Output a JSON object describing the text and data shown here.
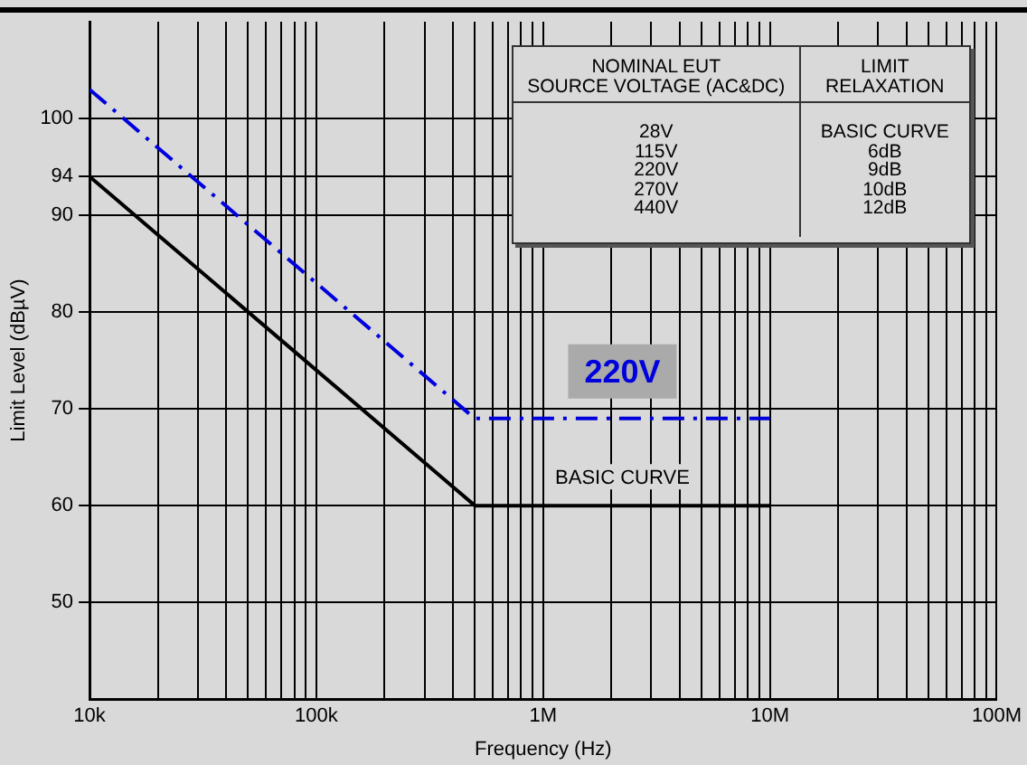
{
  "chart_data": {
    "type": "line",
    "xlabel": "Frequency (Hz)",
    "ylabel": "Limit Level (dBµV)",
    "log": "x",
    "grid": true,
    "legend": false,
    "marker": "none",
    "xlim": [
      10000,
      100000000
    ],
    "xticks": [
      {
        "value": 10000,
        "label": "10k"
      },
      {
        "value": 20000,
        "label": null
      },
      {
        "value": 30000,
        "label": null
      },
      {
        "value": 40000,
        "label": null
      },
      {
        "value": 50000,
        "label": null
      },
      {
        "value": 60000,
        "label": null
      },
      {
        "value": 70000,
        "label": null
      },
      {
        "value": 80000,
        "label": null
      },
      {
        "value": 90000,
        "label": null
      },
      {
        "value": 100000,
        "label": "100k"
      },
      {
        "value": 200000,
        "label": null
      },
      {
        "value": 300000,
        "label": null
      },
      {
        "value": 400000,
        "label": null
      },
      {
        "value": 500000,
        "label": null
      },
      {
        "value": 600000,
        "label": null
      },
      {
        "value": 700000,
        "label": null
      },
      {
        "value": 800000,
        "label": null
      },
      {
        "value": 900000,
        "label": null
      },
      {
        "value": 1000000,
        "label": "1M"
      },
      {
        "value": 2000000,
        "label": null
      },
      {
        "value": 3000000,
        "label": null
      },
      {
        "value": 4000000,
        "label": null
      },
      {
        "value": 5000000,
        "label": null
      },
      {
        "value": 6000000,
        "label": null
      },
      {
        "value": 7000000,
        "label": null
      },
      {
        "value": 8000000,
        "label": null
      },
      {
        "value": 9000000,
        "label": null
      },
      {
        "value": 10000000,
        "label": "10M"
      },
      {
        "value": 20000000,
        "label": null
      },
      {
        "value": 30000000,
        "label": null
      },
      {
        "value": 40000000,
        "label": null
      },
      {
        "value": 50000000,
        "label": null
      },
      {
        "value": 60000000,
        "label": null
      },
      {
        "value": 70000000,
        "label": null
      },
      {
        "value": 80000000,
        "label": null
      },
      {
        "value": 90000000,
        "label": null
      },
      {
        "value": 100000000,
        "label": "100M"
      }
    ],
    "ylim": [
      40,
      110
    ],
    "yticks": [
      50,
      60,
      70,
      80,
      90,
      94,
      100
    ],
    "series": [
      {
        "name": "220V",
        "color": "#0000dd",
        "line_style": "dashed",
        "x": [
          10000,
          500000,
          10000000
        ],
        "values": [
          103,
          69,
          69
        ]
      },
      {
        "name": "BASIC CURVE",
        "color": "#000000",
        "line_style": "solid",
        "x": [
          10000,
          500000,
          10000000
        ],
        "values": [
          94,
          60,
          60
        ]
      }
    ],
    "annotations": [
      "NOMINAL EUT\nSOURCE VOLTAGE (AC&DC)",
      "LIMIT\nRELAXATION",
      "28V",
      "BASIC CURVE",
      "115V",
      "6dB",
      "220V",
      "9dB",
      "270V",
      "10dB",
      "440V",
      "12dB"
    ]
  }
}
